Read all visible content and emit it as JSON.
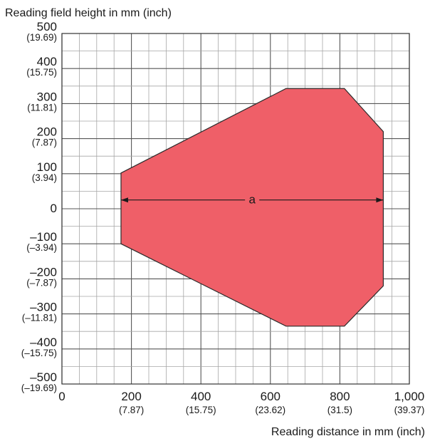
{
  "chart_data": {
    "type": "area",
    "title": "",
    "ylabel": "Reading field height in mm (inch)",
    "xlabel": "Reading distance in mm (inch)",
    "xlim": [
      0,
      1000
    ],
    "ylim": [
      -500,
      500
    ],
    "grid": true,
    "minor_grid_step": 50,
    "major_grid_step": 200,
    "x_ticks": [
      {
        "value": 0,
        "label": "0",
        "sub": ""
      },
      {
        "value": 200,
        "label": "200",
        "sub": "(7.87)"
      },
      {
        "value": 400,
        "label": "400",
        "sub": "(15.75)"
      },
      {
        "value": 600,
        "label": "600",
        "sub": "(23.62)"
      },
      {
        "value": 800,
        "label": "800",
        "sub": "(31.5)"
      },
      {
        "value": 1000,
        "label": "1,000",
        "sub": "(39.37)"
      }
    ],
    "y_ticks": [
      {
        "value": 500,
        "label": "500",
        "sub": "(19.69)"
      },
      {
        "value": 400,
        "label": "400",
        "sub": "(15.75)"
      },
      {
        "value": 300,
        "label": "300",
        "sub": "(11.81)"
      },
      {
        "value": 200,
        "label": "200",
        "sub": "(7.87)"
      },
      {
        "value": 100,
        "label": "100",
        "sub": "(3.94)"
      },
      {
        "value": 0,
        "label": "0",
        "sub": ""
      },
      {
        "value": -100,
        "label": "–100",
        "sub": "(–3.94)"
      },
      {
        "value": -200,
        "label": "–200",
        "sub": "(–7.87)"
      },
      {
        "value": -300,
        "label": "–300",
        "sub": "(–11.81)"
      },
      {
        "value": -400,
        "label": "–400",
        "sub": "(–15.75)"
      },
      {
        "value": -500,
        "label": "–500",
        "sub": "(–19.69)"
      }
    ],
    "field": {
      "color": "#ef5f68",
      "points": [
        [
          170,
          102
        ],
        [
          645,
          343
        ],
        [
          813,
          343
        ],
        [
          925,
          220
        ],
        [
          925,
          -220
        ],
        [
          813,
          -335
        ],
        [
          645,
          -335
        ],
        [
          170,
          -100
        ]
      ]
    },
    "dimension": {
      "label": "a",
      "y": 25,
      "x_start": 170,
      "x_end": 925
    }
  }
}
